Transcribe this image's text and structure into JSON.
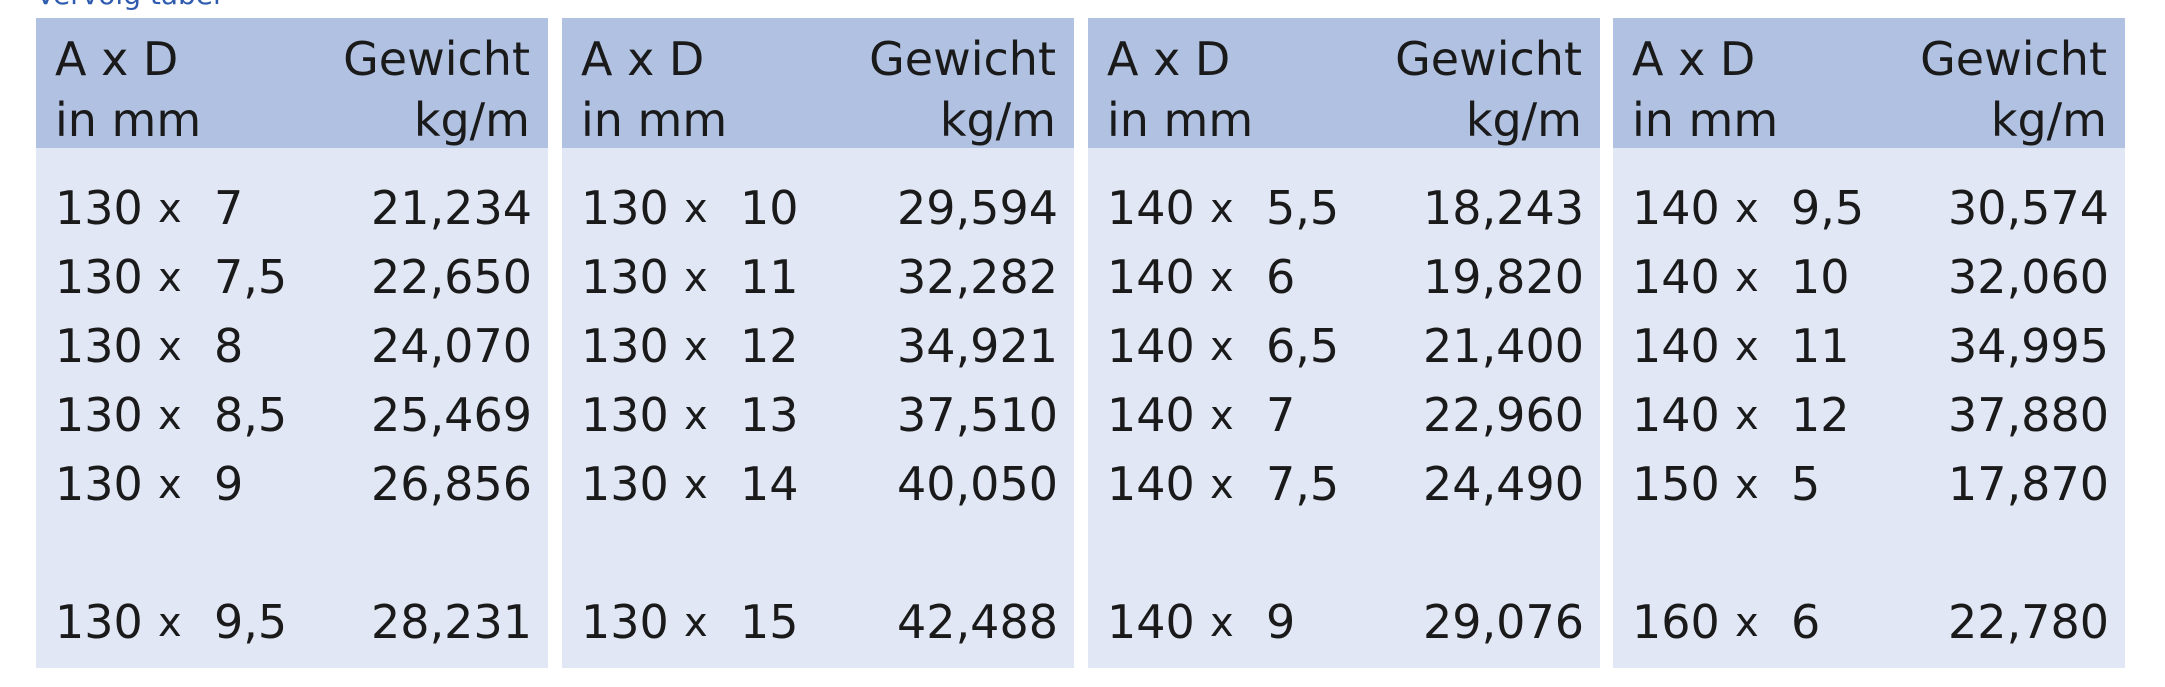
{
  "caption": "Vervolg tabel",
  "panels": [
    {
      "header": {
        "left": [
          "A x D",
          "in mm"
        ],
        "right": [
          "Gewicht",
          "kg/m"
        ]
      },
      "rows": [
        {
          "a": "130",
          "x": "x",
          "d": "7",
          "w": "21,234"
        },
        {
          "a": "130",
          "x": "x",
          "d": "7,5",
          "w": "22,650"
        },
        {
          "a": "130",
          "x": "x",
          "d": "8",
          "w": "24,070"
        },
        {
          "a": "130",
          "x": "x",
          "d": "8,5",
          "w": "25,469"
        },
        {
          "a": "130",
          "x": "x",
          "d": "9",
          "w": "26,856"
        },
        {
          "a": "130",
          "x": "x",
          "d": "9,5",
          "w": "28,231"
        }
      ]
    },
    {
      "header": {
        "left": [
          "A x D",
          "in mm"
        ],
        "right": [
          "Gewicht",
          "kg/m"
        ]
      },
      "rows": [
        {
          "a": "130",
          "x": "x",
          "d": "10",
          "w": "29,594"
        },
        {
          "a": "130",
          "x": "x",
          "d": "11",
          "w": "32,282"
        },
        {
          "a": "130",
          "x": "x",
          "d": "12",
          "w": "34,921"
        },
        {
          "a": "130",
          "x": "x",
          "d": "13",
          "w": "37,510"
        },
        {
          "a": "130",
          "x": "x",
          "d": "14",
          "w": "40,050"
        },
        {
          "a": "130",
          "x": "x",
          "d": "15",
          "w": "42,488"
        }
      ]
    },
    {
      "header": {
        "left": [
          "A x D",
          "in mm"
        ],
        "right": [
          "Gewicht",
          "kg/m"
        ]
      },
      "rows": [
        {
          "a": "140",
          "x": "x",
          "d": "5,5",
          "w": "18,243"
        },
        {
          "a": "140",
          "x": "x",
          "d": "6",
          "w": "19,820"
        },
        {
          "a": "140",
          "x": "x",
          "d": "6,5",
          "w": "21,400"
        },
        {
          "a": "140",
          "x": "x",
          "d": "7",
          "w": "22,960"
        },
        {
          "a": "140",
          "x": "x",
          "d": "7,5",
          "w": "24,490"
        },
        {
          "a": "140",
          "x": "x",
          "d": "9",
          "w": "29,076"
        }
      ]
    },
    {
      "header": {
        "left": [
          "A x D",
          "in mm"
        ],
        "right": [
          "Gewicht",
          "kg/m"
        ]
      },
      "rows": [
        {
          "a": "140",
          "x": "x",
          "d": "9,5",
          "w": "30,574"
        },
        {
          "a": "140",
          "x": "x",
          "d": "10",
          "w": "32,060"
        },
        {
          "a": "140",
          "x": "x",
          "d": "11",
          "w": "34,995"
        },
        {
          "a": "140",
          "x": "x",
          "d": "12",
          "w": "37,880"
        },
        {
          "a": "150",
          "x": "x",
          "d": "5",
          "w": "17,870"
        },
        {
          "a": "160",
          "x": "x",
          "d": "6",
          "w": "22,780"
        }
      ]
    }
  ]
}
